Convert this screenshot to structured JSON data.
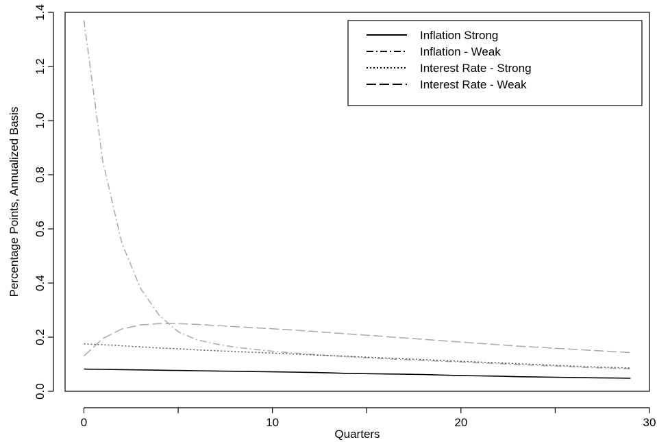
{
  "chart_data": {
    "type": "line",
    "title": "",
    "xlabel": "Quarters",
    "ylabel": "Percentage Points, Annualized Basis",
    "xlim": [
      -1,
      30
    ],
    "ylim": [
      0,
      1.4
    ],
    "xticks": [
      0,
      10,
      20,
      30
    ],
    "yticks": [
      0.0,
      0.2,
      0.4,
      0.6,
      0.8,
      1.0,
      1.2,
      1.4
    ],
    "ytick_labels": [
      "0.0",
      "0.2",
      "0.4",
      "0.6",
      "0.8",
      "1.0",
      "1.2",
      "1.4"
    ],
    "xtick_labels": [
      "0",
      "10",
      "20",
      "30"
    ],
    "grid": false,
    "legend_position": "top-right",
    "x": [
      0,
      1,
      2,
      3,
      4,
      5,
      6,
      7,
      8,
      9,
      10,
      11,
      12,
      13,
      14,
      15,
      16,
      17,
      18,
      19,
      20,
      21,
      22,
      23,
      24,
      25,
      26,
      27,
      28,
      29
    ],
    "series": [
      {
        "name": "Inflation Strong",
        "legend_style": "solid",
        "plot_style": "solid",
        "color": "#000000",
        "values": [
          0.082,
          0.081,
          0.08,
          0.079,
          0.078,
          0.077,
          0.076,
          0.075,
          0.074,
          0.073,
          0.072,
          0.071,
          0.07,
          0.068,
          0.066,
          0.065,
          0.064,
          0.063,
          0.062,
          0.06,
          0.058,
          0.057,
          0.056,
          0.054,
          0.053,
          0.052,
          0.051,
          0.05,
          0.049,
          0.048
        ]
      },
      {
        "name": "Inflation - Weak",
        "legend_style": "dashdot",
        "plot_style": "dashdot",
        "color": "#a8a8a8",
        "values": [
          1.37,
          0.85,
          0.55,
          0.38,
          0.28,
          0.22,
          0.19,
          0.175,
          0.163,
          0.155,
          0.148,
          0.142,
          0.137,
          0.132,
          0.128,
          0.124,
          0.12,
          0.117,
          0.114,
          0.111,
          0.108,
          0.105,
          0.102,
          0.099,
          0.096,
          0.093,
          0.09,
          0.087,
          0.085,
          0.083
        ]
      },
      {
        "name": "Interest Rate - Strong",
        "legend_style": "dotted",
        "plot_style": "dotted",
        "color": "#555555",
        "values": [
          0.175,
          0.172,
          0.168,
          0.164,
          0.16,
          0.157,
          0.153,
          0.15,
          0.147,
          0.144,
          0.141,
          0.138,
          0.135,
          0.132,
          0.129,
          0.126,
          0.123,
          0.12,
          0.117,
          0.114,
          0.111,
          0.108,
          0.105,
          0.102,
          0.099,
          0.096,
          0.093,
          0.09,
          0.088,
          0.086
        ]
      },
      {
        "name": "Interest Rate - Weak",
        "legend_style": "longdash",
        "plot_style": "longdash",
        "color": "#a8a8a8",
        "values": [
          0.13,
          0.195,
          0.23,
          0.245,
          0.25,
          0.25,
          0.247,
          0.243,
          0.239,
          0.235,
          0.231,
          0.227,
          0.222,
          0.217,
          0.212,
          0.207,
          0.202,
          0.197,
          0.192,
          0.187,
          0.182,
          0.177,
          0.172,
          0.167,
          0.163,
          0.159,
          0.155,
          0.151,
          0.147,
          0.143
        ]
      }
    ]
  }
}
